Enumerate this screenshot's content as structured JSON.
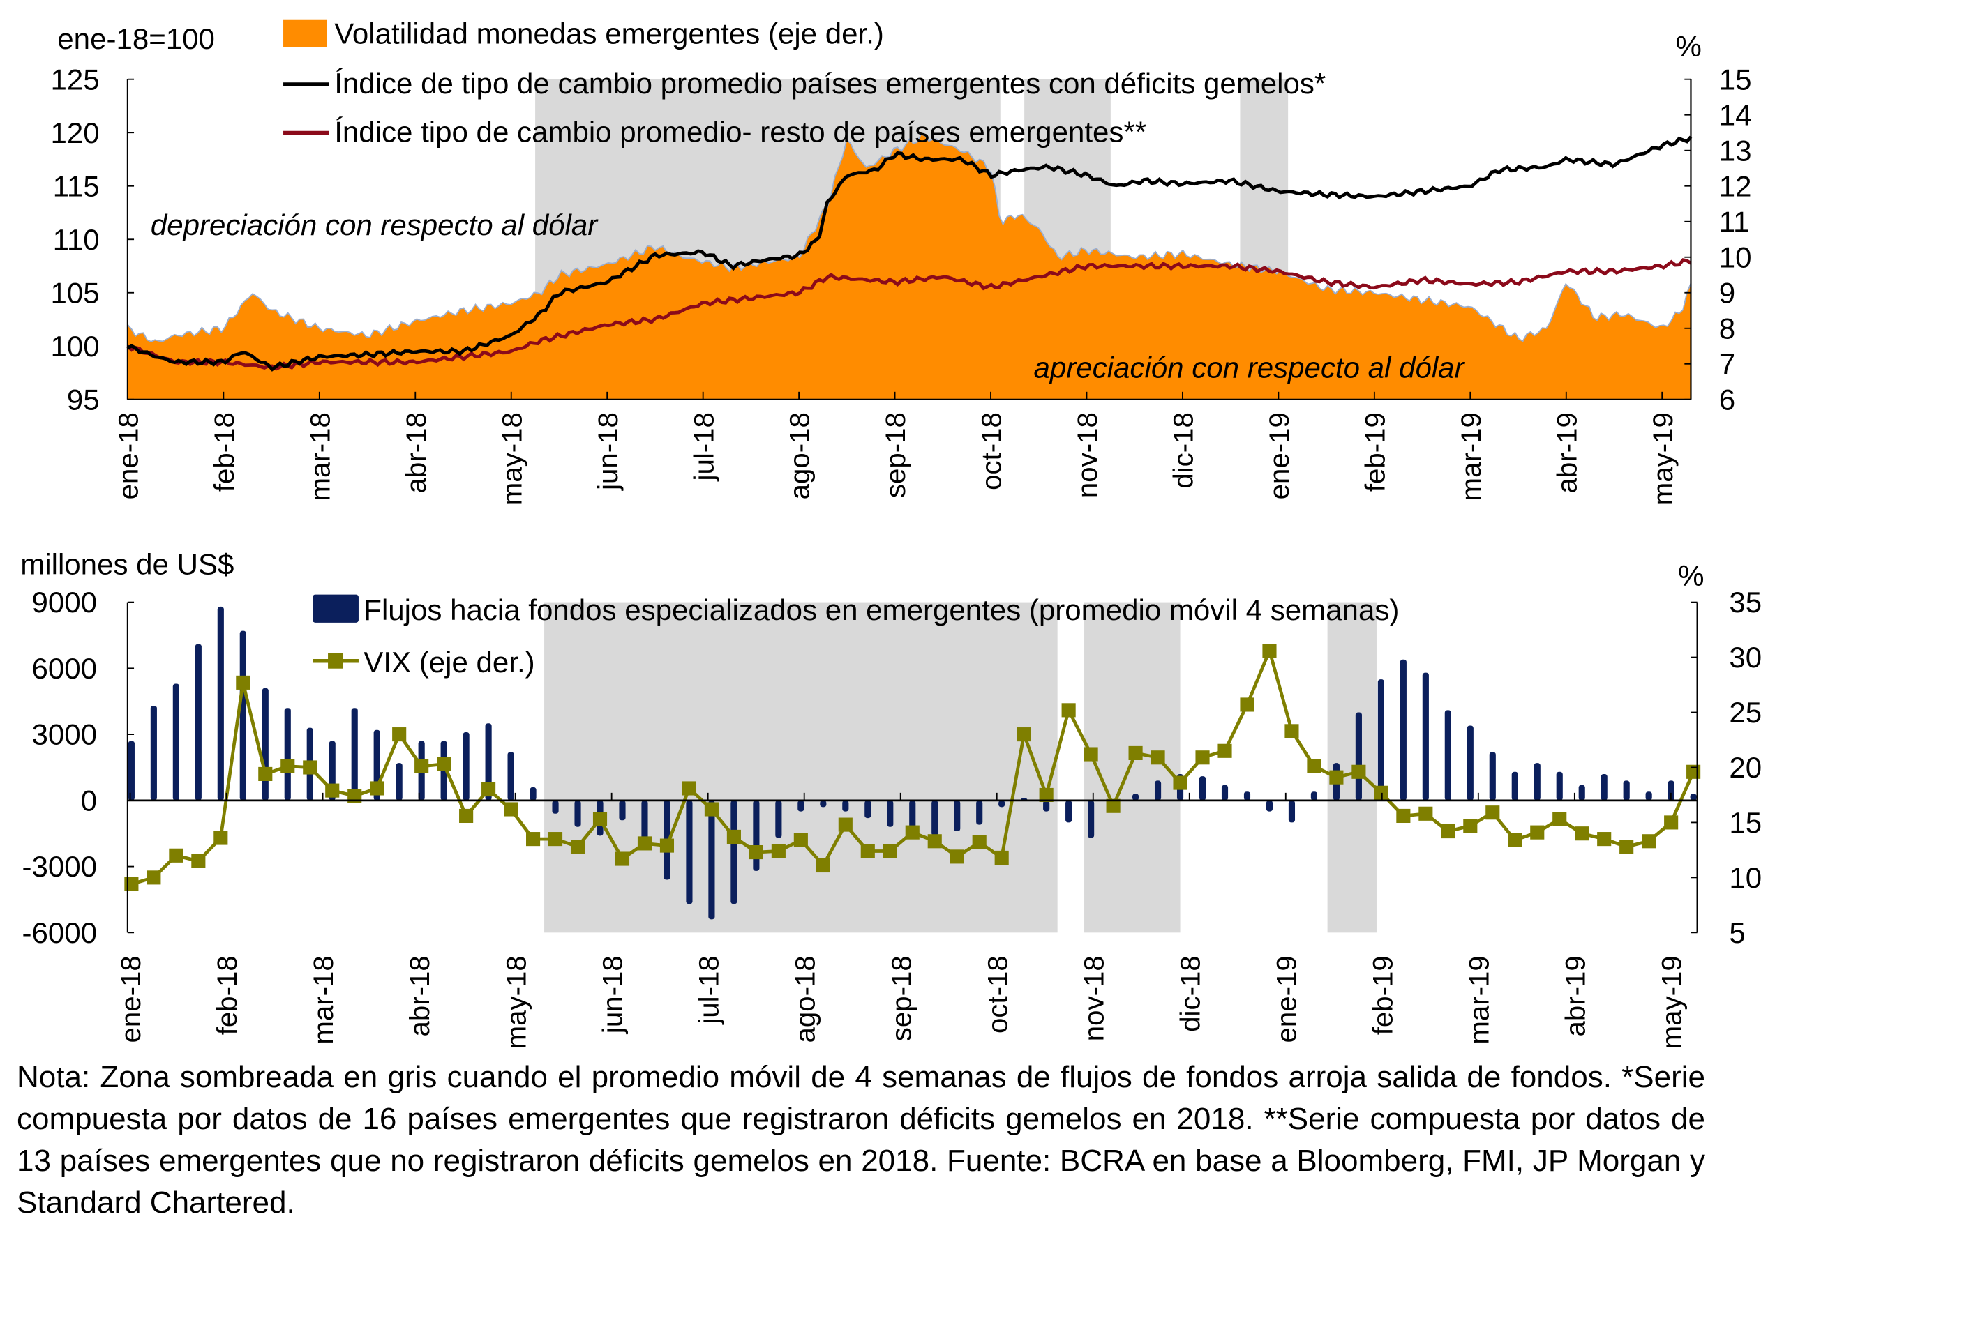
{
  "colors": {
    "volatility": "#ff8c00",
    "index_twin": "#000000",
    "index_rest": "#8b0a1a",
    "flows": "#0b1f5c",
    "vix": "#7f7f00",
    "shade": "#d9d9d9"
  },
  "months": [
    "ene-18",
    "feb-18",
    "mar-18",
    "abr-18",
    "may-18",
    "jun-18",
    "jul-18",
    "ago-18",
    "sep-18",
    "oct-18",
    "nov-18",
    "dic-18",
    "ene-19",
    "feb-19",
    "mar-19",
    "abr-19",
    "may-19"
  ],
  "chart_data": [
    {
      "type": "line",
      "title": "",
      "ylabel": "ene-18=100",
      "y2label": "%",
      "ylim": [
        95,
        125
      ],
      "yticks": [
        95,
        100,
        105,
        110,
        115,
        120,
        125
      ],
      "y2lim": [
        6,
        15
      ],
      "y2ticks": [
        6,
        7,
        8,
        9,
        10,
        11,
        12,
        13,
        14,
        15
      ],
      "x_unit": "months since ene-18",
      "xlim": [
        0,
        16.3
      ],
      "shaded_ranges": [
        [
          4.25,
          9.1
        ],
        [
          9.35,
          10.25
        ],
        [
          11.6,
          12.1
        ]
      ],
      "annotations": [
        "depreciación con respecto al dólar",
        "apreciación con respecto al dólar"
      ],
      "series": [
        {
          "name": "Volatilidad monedas emergentes (eje der.)",
          "kind": "area",
          "axis": "right",
          "x": [
            0,
            0.3,
            0.5,
            1,
            1.3,
            1.5,
            2,
            2.5,
            3,
            3.5,
            4,
            4.3,
            4.5,
            5,
            5.5,
            5.8,
            6.3,
            7,
            7.3,
            7.5,
            7.7,
            8,
            8.3,
            8.7,
            9,
            9.1,
            9.3,
            9.5,
            9.7,
            10,
            10.5,
            11,
            11.5,
            12,
            12.5,
            13,
            13.5,
            14,
            14.5,
            14.8,
            15,
            15.3,
            15.6,
            16,
            16.2,
            16.3
          ],
          "y": [
            8.0,
            7.6,
            7.8,
            8.0,
            9.0,
            8.5,
            8.0,
            7.8,
            8.2,
            8.5,
            8.7,
            9.0,
            9.5,
            9.8,
            10.3,
            10.0,
            9.7,
            10.0,
            11.5,
            13.3,
            12.5,
            13.0,
            13.4,
            13.0,
            12.5,
            11.0,
            11.2,
            10.8,
            10.0,
            10.2,
            10.0,
            10.1,
            9.8,
            9.6,
            9.1,
            9.0,
            8.8,
            8.6,
            7.7,
            8.0,
            9.3,
            8.3,
            8.4,
            8.0,
            8.5,
            9.2
          ]
        },
        {
          "name": "Índice de tipo de cambio promedio países emergentes con déficits gemelos*",
          "kind": "line",
          "axis": "left",
          "x": [
            0,
            0.3,
            0.5,
            1,
            1.2,
            1.5,
            2,
            2.5,
            3,
            3.5,
            4,
            4.3,
            4.5,
            5,
            5.3,
            5.5,
            6,
            6.3,
            6.6,
            7,
            7.2,
            7.3,
            7.5,
            7.8,
            8,
            8.3,
            8.7,
            9,
            9.3,
            9.6,
            10,
            10.3,
            10.6,
            11,
            11.5,
            12,
            12.5,
            13,
            13.5,
            14,
            14.3,
            14.8,
            15,
            15.5,
            16,
            16.3
          ],
          "y": [
            100,
            99,
            98.5,
            98.5,
            99.5,
            98,
            99,
            99.2,
            99.5,
            99.5,
            101,
            103,
            105,
            106,
            107.5,
            108.5,
            108.8,
            107.5,
            108,
            108.5,
            110,
            113.5,
            116,
            116.5,
            118,
            117.5,
            117.5,
            116,
            116.5,
            116.8,
            116,
            115,
            115.5,
            115.2,
            115.5,
            114.5,
            114.2,
            114,
            114.5,
            115,
            116.5,
            116.8,
            117.5,
            117,
            118.8,
            119.5
          ]
        },
        {
          "name": "Índice tipo de cambio promedio- resto de países emergentes**",
          "kind": "line",
          "axis": "left",
          "x": [
            0,
            0.5,
            1,
            1.5,
            2,
            3,
            3.5,
            4,
            4.3,
            5,
            5.5,
            6,
            6.5,
            7,
            7.3,
            8,
            8.5,
            9,
            9.5,
            10,
            10.5,
            11,
            11.5,
            12,
            12.5,
            13,
            13.5,
            14,
            14.5,
            15,
            15.5,
            16,
            16.3
          ],
          "y": [
            100,
            98.5,
            98.5,
            98,
            98.5,
            98.5,
            99,
            99.5,
            100.5,
            102,
            102.5,
            104,
            104.5,
            105,
            106.5,
            106,
            106.5,
            105.5,
            106.5,
            107.5,
            107.5,
            107.5,
            107.5,
            107,
            106,
            105.5,
            106.2,
            105.8,
            106,
            107,
            107,
            107.5,
            108
          ]
        }
      ]
    },
    {
      "type": "bar+line",
      "title": "",
      "ylabel": "millones de US$",
      "y2label": "%",
      "ylim": [
        -6000,
        9000
      ],
      "yticks": [
        -6000,
        -3000,
        0,
        3000,
        6000,
        9000
      ],
      "y2lim": [
        5,
        35
      ],
      "y2ticks": [
        5,
        10,
        15,
        20,
        25,
        30,
        35
      ],
      "x_unit": "weeks",
      "shaded_ranges": [
        [
          18.5,
          41.5
        ],
        [
          42.7,
          47
        ],
        [
          53.6,
          55.8
        ]
      ],
      "series": [
        {
          "name": "Flujos hacia fondos especializados en emergentes (promedio móvil 4 semanas)",
          "kind": "bar",
          "axis": "left",
          "values": [
            2700,
            4300,
            5300,
            7100,
            8800,
            7700,
            5100,
            4200,
            3300,
            2700,
            4200,
            3200,
            1700,
            2700,
            2700,
            3100,
            3500,
            2200,
            600,
            -600,
            -1200,
            -1600,
            -900,
            -1900,
            -3600,
            -4700,
            -5400,
            -4700,
            -3200,
            -1700,
            -500,
            -300,
            -500,
            -800,
            -1200,
            -1600,
            -1600,
            -1400,
            -1100,
            -300,
            100,
            -500,
            -1000,
            -1700,
            0,
            300,
            900,
            1200,
            1100,
            700,
            400,
            -500,
            -1000,
            400,
            1700,
            4000,
            5500,
            6400,
            5800,
            4100,
            3400,
            2200,
            1300,
            1700,
            1300,
            700,
            1200,
            900,
            400,
            900,
            300
          ]
        },
        {
          "name": "VIX (eje der.)",
          "kind": "line",
          "axis": "right",
          "values": [
            9.4,
            10.0,
            12.0,
            11.5,
            13.6,
            27.7,
            19.4,
            20.1,
            20.0,
            17.9,
            17.4,
            18.1,
            23.0,
            20.1,
            20.3,
            15.6,
            18.0,
            16.2,
            13.5,
            13.5,
            12.8,
            15.3,
            11.7,
            13.1,
            12.9,
            18.1,
            16.2,
            13.7,
            12.3,
            12.4,
            13.4,
            11.1,
            14.8,
            12.4,
            12.4,
            14.1,
            13.3,
            11.9,
            13.2,
            11.8,
            23.0,
            17.5,
            25.2,
            21.2,
            16.5,
            21.3,
            20.9,
            18.6,
            20.9,
            21.5,
            25.7,
            30.6,
            23.3,
            20.1,
            19.1,
            19.6,
            17.7,
            15.6,
            15.8,
            14.2,
            14.7,
            15.9,
            13.4,
            14.1,
            15.3,
            14.0,
            13.5,
            12.8,
            13.3,
            15.0,
            19.6
          ]
        }
      ]
    }
  ],
  "top": {
    "ylabel": "ene-18=100",
    "y2label": "%",
    "legend": [
      "Volatilidad monedas emergentes (eje der.)",
      "Índice de tipo de cambio promedio países emergentes con déficits gemelos*",
      "Índice tipo de cambio promedio- resto de países emergentes**"
    ],
    "annot_dep": "depreciación con respecto al dólar",
    "annot_apr": "apreciación con respecto al dólar"
  },
  "bottom": {
    "ylabel": "millones de US$",
    "y2label": "%",
    "legend": [
      "Flujos hacia fondos especializados en emergentes (promedio móvil 4 semanas)",
      "VIX (eje der.)"
    ]
  },
  "note": "Nota: Zona sombreada en gris cuando el promedio móvil de 4 semanas de flujos de fondos arroja salida de fondos. *Serie compuesta por datos de 16 países emergentes que registraron déficits gemelos en 2018. **Serie compuesta por datos de 13 países emergentes que no registraron déficits gemelos en 2018. Fuente: BCRA en base a Bloomberg, FMI, JP Morgan y Standard Chartered."
}
